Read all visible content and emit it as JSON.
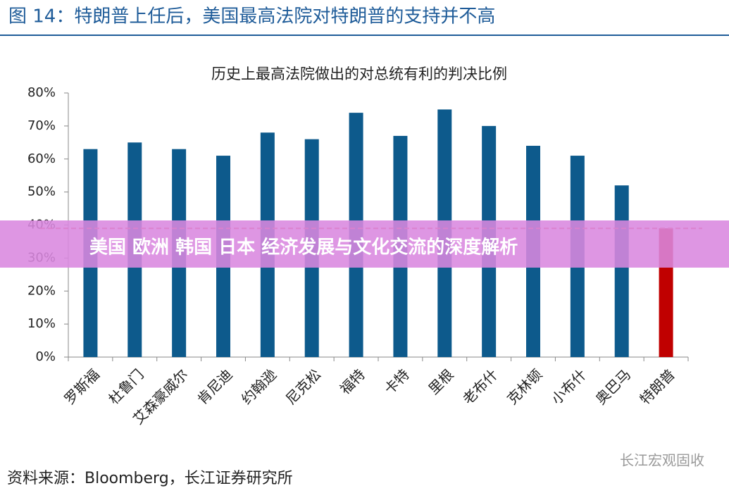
{
  "figure_title": "图 14：特朗普上任后，美国最高法院对特朗普的支持并不高",
  "chart_data": {
    "type": "bar",
    "title": "历史上最高法院做出的对总统有利的判决比例",
    "categories": [
      "罗斯福",
      "杜鲁门",
      "艾森豪威尔",
      "肯尼迪",
      "约翰逊",
      "尼克松",
      "福特",
      "卡特",
      "里根",
      "老布什",
      "克林顿",
      "小布什",
      "奥巴马",
      "特朗普"
    ],
    "values": [
      63,
      65,
      63,
      61,
      68,
      66,
      74,
      67,
      75,
      70,
      64,
      61,
      52,
      39
    ],
    "colors": [
      "#0d5a8c",
      "#0d5a8c",
      "#0d5a8c",
      "#0d5a8c",
      "#0d5a8c",
      "#0d5a8c",
      "#0d5a8c",
      "#0d5a8c",
      "#0d5a8c",
      "#0d5a8c",
      "#0d5a8c",
      "#0d5a8c",
      "#0d5a8c",
      "#c00000"
    ],
    "reference_line": 39,
    "reference_color": "#e05050",
    "ylim": [
      0,
      80
    ],
    "yticks": [
      {
        "value": 0,
        "label": "0%"
      },
      {
        "value": 10,
        "label": "10%"
      },
      {
        "value": 20,
        "label": "20%"
      },
      {
        "value": 30,
        "label": "30%"
      },
      {
        "value": 40,
        "label": "40%"
      },
      {
        "value": 50,
        "label": "50%"
      },
      {
        "value": 60,
        "label": "60%"
      },
      {
        "value": 70,
        "label": "70%"
      },
      {
        "value": 80,
        "label": "80%"
      }
    ],
    "grid": false
  },
  "banner": "美国 欧洲 韩国 日本 经济发展与文化交流的深度解析",
  "watermark": "长江宏观固收",
  "source": "资料来源：Bloomberg，长江证券研究所"
}
